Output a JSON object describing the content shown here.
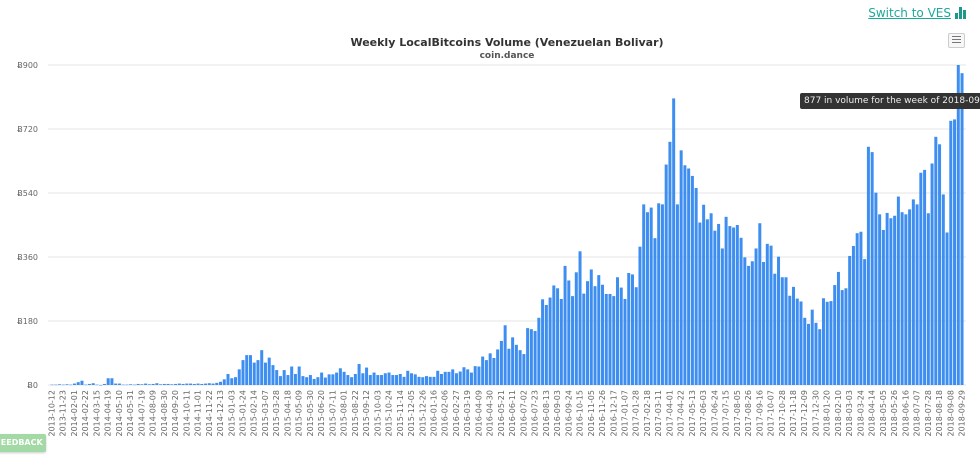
{
  "header": {
    "switch_label": "Switch to VES",
    "switch_icon": "bar-chart-icon"
  },
  "menu_icon": "hamburger-icon",
  "feedback_label": "FEEDBACK",
  "tooltip": "877 in volume for the week of 2018-09-29",
  "colors": {
    "bar": "#3d8ef0",
    "link": "#1fa89a"
  },
  "chart_data": {
    "type": "bar",
    "title": "Weekly LocalBitcoins Volume (Venezuelan Bolivar)",
    "subtitle": "coin.dance",
    "ylim": [
      0,
      900
    ],
    "yticks": [
      0,
      180,
      360,
      540,
      720,
      900
    ],
    "ytick_labels": [
      "Ƀ0",
      "Ƀ180",
      "Ƀ360",
      "Ƀ540",
      "Ƀ720",
      "Ƀ900"
    ],
    "grid": true,
    "xtick_labels": [
      "2013-10-12",
      "2013-11-23",
      "2014-02-01",
      "2014-02-22",
      "2014-03-15",
      "2014-04-19",
      "2014-05-10",
      "2014-05-31",
      "2014-07-19",
      "2014-08-09",
      "2014-08-30",
      "2014-09-20",
      "2014-10-11",
      "2014-11-01",
      "2014-11-22",
      "2014-12-13",
      "2015-01-03",
      "2015-01-24",
      "2015-02-14",
      "2015-03-07",
      "2015-03-28",
      "2015-04-18",
      "2015-05-09",
      "2015-05-30",
      "2015-06-20",
      "2015-07-11",
      "2015-08-01",
      "2015-08-22",
      "2015-09-12",
      "2015-10-03",
      "2015-10-24",
      "2015-11-14",
      "2015-12-05",
      "2015-12-26",
      "2016-01-16",
      "2016-02-06",
      "2016-02-27",
      "2016-03-19",
      "2016-04-09",
      "2016-04-30",
      "2016-05-21",
      "2016-06-11",
      "2016-07-02",
      "2016-07-23",
      "2016-08-13",
      "2016-09-03",
      "2016-09-24",
      "2016-10-15",
      "2016-11-05",
      "2016-11-26",
      "2016-12-17",
      "2017-01-07",
      "2017-01-28",
      "2017-02-18",
      "2017-03-11",
      "2017-04-01",
      "2017-04-22",
      "2017-05-13",
      "2017-06-03",
      "2017-06-24",
      "2017-07-15",
      "2017-08-05",
      "2017-08-26",
      "2017-09-16",
      "2017-10-07",
      "2017-10-28",
      "2017-11-18",
      "2017-12-09",
      "2017-12-30",
      "2018-01-20",
      "2018-02-10",
      "2018-03-03",
      "2018-03-24",
      "2018-04-14",
      "2018-05-05",
      "2018-05-26",
      "2018-06-16",
      "2018-07-07",
      "2018-07-28",
      "2018-08-18",
      "2018-09-08",
      "2018-09-29"
    ],
    "values": [
      1,
      1,
      2,
      1,
      2,
      1,
      4,
      8,
      12,
      1,
      3,
      5,
      1,
      0,
      3,
      19,
      19,
      4,
      4,
      1,
      1,
      2,
      1,
      3,
      2,
      4,
      2,
      3,
      5,
      2,
      3,
      3,
      2,
      3,
      4,
      3,
      4,
      4,
      3,
      4,
      3,
      4,
      5,
      4,
      6,
      9,
      16,
      31,
      19,
      22,
      44,
      70,
      84,
      84,
      63,
      70,
      98,
      63,
      77,
      56,
      42,
      25,
      42,
      28,
      52,
      31,
      52,
      25,
      22,
      28,
      17,
      22,
      35,
      21,
      30,
      30,
      35,
      47,
      37,
      28,
      22,
      31,
      59,
      33,
      49,
      28,
      35,
      28,
      28,
      33,
      35,
      28,
      28,
      31,
      23,
      40,
      33,
      30,
      23,
      22,
      25,
      23,
      23,
      40,
      31,
      37,
      37,
      44,
      33,
      38,
      50,
      44,
      35,
      53,
      52,
      80,
      70,
      89,
      76,
      100,
      124,
      168,
      102,
      134,
      113,
      98,
      87,
      160,
      157,
      152,
      189,
      241,
      225,
      246,
      280,
      272,
      242,
      335,
      294,
      250,
      317,
      376,
      257,
      292,
      325,
      278,
      309,
      282,
      256,
      256,
      250,
      303,
      274,
      242,
      315,
      311,
      275,
      389,
      508,
      486,
      499,
      413,
      511,
      508,
      620,
      684,
      806,
      508,
      660,
      618,
      609,
      588,
      554,
      457,
      507,
      466,
      483,
      434,
      453,
      384,
      473,
      447,
      443,
      450,
      414,
      359,
      335,
      348,
      384,
      455,
      346,
      397,
      392,
      313,
      361,
      303,
      303,
      251,
      276,
      243,
      235,
      189,
      172,
      212,
      175,
      157,
      244,
      234,
      236,
      281,
      318,
      267,
      272,
      363,
      391,
      427,
      431,
      354,
      670,
      655,
      541,
      480,
      436,
      484,
      469,
      476,
      530,
      486,
      480,
      494,
      522,
      508,
      597,
      605,
      483,
      623,
      698,
      677,
      536,
      429,
      743,
      747,
      900,
      877
    ]
  }
}
